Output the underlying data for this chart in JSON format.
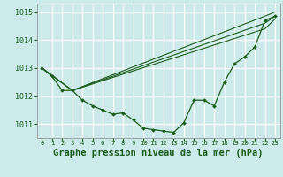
{
  "background_color": "#cceaea",
  "grid_color": "#b0d8d8",
  "line_color": "#1a5c1a",
  "xlabel": "Graphe pression niveau de la mer (hPa)",
  "xlabel_fontsize": 7.5,
  "tick_fontsize": 6,
  "xlim": [
    -0.5,
    23.5
  ],
  "ylim": [
    1010.5,
    1015.3
  ],
  "yticks": [
    1011,
    1012,
    1013,
    1014,
    1015
  ],
  "xticks": [
    0,
    1,
    2,
    3,
    4,
    5,
    6,
    7,
    8,
    9,
    10,
    11,
    12,
    13,
    14,
    15,
    16,
    17,
    18,
    19,
    20,
    21,
    22,
    23
  ],
  "series1_x": [
    0,
    1,
    2,
    3,
    4,
    5,
    6,
    7,
    8,
    9,
    10,
    11,
    12,
    13,
    14,
    15,
    16,
    17,
    18,
    19,
    20,
    21,
    22,
    23
  ],
  "series1_y": [
    1013.0,
    1012.7,
    1012.2,
    1012.2,
    1011.85,
    1011.65,
    1011.5,
    1011.35,
    1011.4,
    1011.15,
    1010.85,
    1010.8,
    1010.75,
    1010.7,
    1011.05,
    1011.85,
    1011.85,
    1011.65,
    1012.5,
    1013.15,
    1013.4,
    1013.75,
    1014.7,
    1014.85
  ],
  "series2_x": [
    0,
    3,
    22,
    23
  ],
  "series2_y": [
    1013.0,
    1012.2,
    1014.85,
    1015.0
  ],
  "series3_x": [
    0,
    3,
    22,
    23
  ],
  "series3_y": [
    1013.0,
    1012.2,
    1014.6,
    1014.85
  ],
  "series4_x": [
    0,
    3,
    22,
    23
  ],
  "series4_y": [
    1013.0,
    1012.2,
    1014.4,
    1014.75
  ]
}
